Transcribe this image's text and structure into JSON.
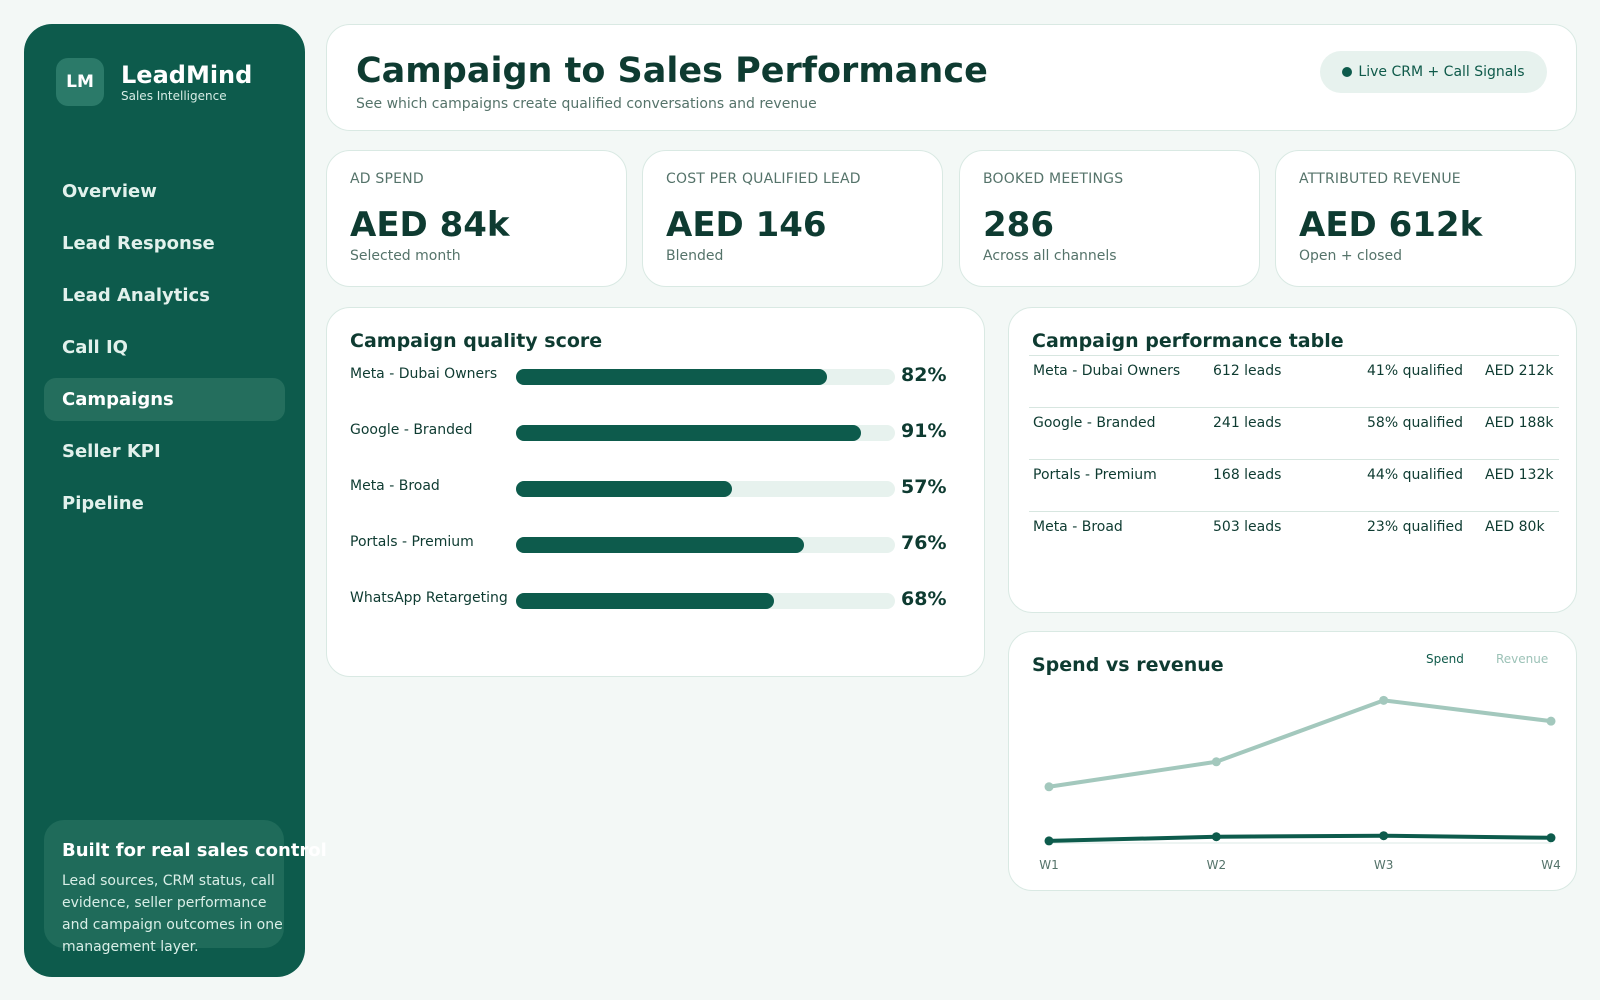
{
  "brand": {
    "logo": "LM",
    "name": "LeadMind",
    "tagline": "Sales Intelligence"
  },
  "nav": {
    "items": [
      {
        "label": "Overview"
      },
      {
        "label": "Lead Response"
      },
      {
        "label": "Lead Analytics"
      },
      {
        "label": "Call IQ"
      },
      {
        "label": "Campaigns",
        "active": true
      },
      {
        "label": "Seller KPI"
      },
      {
        "label": "Pipeline"
      }
    ]
  },
  "promo": {
    "title": "Built for real sales control",
    "text": "Lead sources, CRM status, call evidence, seller performance and campaign outcomes in one management layer."
  },
  "header": {
    "title": "Campaign to Sales Performance",
    "subtitle": "See which campaigns create qualified conversations and revenue",
    "live_label": "Live CRM + Call Signals"
  },
  "kpis": [
    {
      "label": "AD SPEND",
      "value": "AED 84k",
      "note": "Selected month"
    },
    {
      "label": "COST PER QUALIFIED LEAD",
      "value": "AED 146",
      "note": "Blended"
    },
    {
      "label": "BOOKED MEETINGS",
      "value": "286",
      "note": "Across all channels"
    },
    {
      "label": "ATTRIBUTED REVENUE",
      "value": "AED 612k",
      "note": "Open + closed"
    }
  ],
  "quality": {
    "title": "Campaign quality score",
    "rows": [
      {
        "name": "Meta - Dubai Owners",
        "pct_label": "82%",
        "value": 0.82
      },
      {
        "name": "Google - Branded",
        "pct_label": "91%",
        "value": 0.91
      },
      {
        "name": "Meta - Broad",
        "pct_label": "57%",
        "value": 0.57
      },
      {
        "name": "Portals - Premium",
        "pct_label": "76%",
        "value": 0.76
      },
      {
        "name": "WhatsApp Retargeting",
        "pct_label": "68%",
        "value": 0.68
      }
    ]
  },
  "performance": {
    "title": "Campaign performance table",
    "rows": [
      [
        "Meta - Dubai Owners",
        "612 leads",
        "41% qualified",
        "AED 212k"
      ],
      [
        "Google - Branded",
        "241 leads",
        "58% qualified",
        "AED 188k"
      ],
      [
        "Portals - Premium",
        "168 leads",
        "44% qualified",
        "AED 132k"
      ],
      [
        "Meta - Broad",
        "503 leads",
        "23% qualified",
        "AED 80k"
      ]
    ]
  },
  "chart": {
    "title": "Spend vs revenue",
    "legend_spend": "Spend",
    "legend_revenue": "Revenue",
    "colors": {
      "spend": "#0d5b4c",
      "revenue": "#a3c8bd"
    }
  },
  "chart_data": {
    "type": "line",
    "title": "Spend vs revenue",
    "x": [
      "W1",
      "W2",
      "W3",
      "W4"
    ],
    "series": [
      {
        "name": "Spend",
        "values": [
          2,
          6,
          7,
          5
        ]
      },
      {
        "name": "Revenue",
        "values": [
          54,
          78,
          137,
          117
        ]
      }
    ],
    "ylim": [
      0,
      145
    ],
    "grid": false,
    "legend": "top-right"
  }
}
